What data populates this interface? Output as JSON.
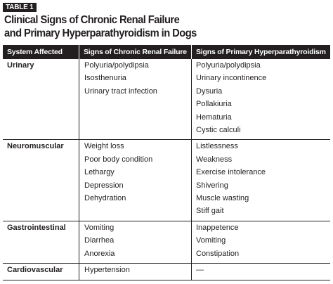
{
  "label": "TABLE 1",
  "title": [
    "Clinical Signs of Chronic Renal Failure",
    "and Primary Hyperparathyroidism in Dogs"
  ],
  "table": {
    "columns": [
      "System Affected",
      "Signs of Chronic Renal Failure",
      "Signs of Primary Hyperparathyroidism"
    ],
    "rows": [
      {
        "system": "Urinary",
        "renal": [
          "Polyuria/polydipsia",
          "Isosthenuria",
          "Urinary tract infection"
        ],
        "hyper": [
          "Polyuria/polydipsia",
          "Urinary incontinence",
          "Dysuria",
          "Pollakiuria",
          "Hematuria",
          "Cystic calculi"
        ]
      },
      {
        "system": "Neuromuscular",
        "renal": [
          "Weight loss",
          "Poor body condition",
          "Lethargy",
          "Depression",
          "Dehydration"
        ],
        "hyper": [
          "Listlessness",
          "Weakness",
          "Exercise intolerance",
          "Shivering",
          "Muscle wasting",
          "Stiff gait"
        ]
      },
      {
        "system": "Gastrointestinal",
        "renal": [
          "Vomiting",
          "Diarrhea",
          "Anorexia"
        ],
        "hyper": [
          "Inappetence",
          "Vomiting",
          "Constipation"
        ]
      },
      {
        "system": "Cardiovascular",
        "renal": [
          "Hypertension"
        ],
        "hyper": [
          "—"
        ]
      }
    ]
  }
}
